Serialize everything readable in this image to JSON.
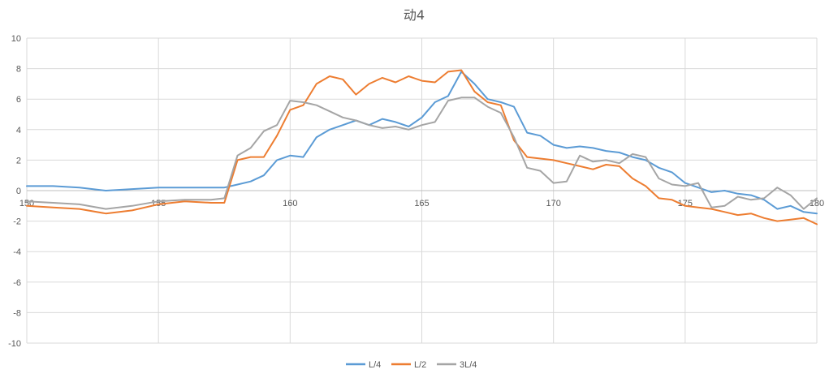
{
  "chart_data": {
    "type": "line",
    "title": "动4",
    "xlabel": "",
    "ylabel": "",
    "xlim": [
      150,
      180
    ],
    "ylim": [
      -10,
      10
    ],
    "xticks": [
      150,
      155,
      160,
      165,
      170,
      175,
      180
    ],
    "yticks": [
      -10,
      -8,
      -6,
      -4,
      -2,
      0,
      2,
      4,
      6,
      8,
      10
    ],
    "grid": true,
    "legend": "bottom",
    "x": [
      150,
      151,
      152,
      153,
      154,
      155,
      156,
      157,
      157.5,
      158,
      158.5,
      159,
      159.5,
      160,
      160.5,
      161,
      161.5,
      162,
      162.5,
      163,
      163.5,
      164,
      164.5,
      165,
      165.5,
      166,
      166.5,
      167,
      167.5,
      168,
      168.5,
      169,
      169.5,
      170,
      170.5,
      171,
      171.5,
      172,
      172.5,
      173,
      173.5,
      174,
      174.5,
      175,
      175.5,
      176,
      176.5,
      177,
      177.5,
      178,
      178.5,
      179,
      179.5,
      180
    ],
    "series": [
      {
        "name": "L/4",
        "color": "#5B9BD5",
        "values": [
          0.3,
          0.3,
          0.2,
          0.0,
          0.1,
          0.2,
          0.2,
          0.2,
          0.2,
          0.4,
          0.6,
          1.0,
          2.0,
          2.3,
          2.2,
          3.5,
          4.0,
          4.3,
          4.6,
          4.3,
          4.7,
          4.5,
          4.2,
          4.8,
          5.8,
          6.2,
          7.8,
          7.0,
          6.0,
          5.8,
          5.5,
          3.8,
          3.6,
          3.0,
          2.8,
          2.9,
          2.8,
          2.6,
          2.5,
          2.2,
          2.0,
          1.5,
          1.2,
          0.5,
          0.2,
          -0.1,
          0.0,
          -0.2,
          -0.3,
          -0.6,
          -1.2,
          -1.0,
          -1.4,
          -1.5
        ]
      },
      {
        "name": "L/2",
        "color": "#ED7D31",
        "values": [
          -1.0,
          -1.1,
          -1.2,
          -1.5,
          -1.3,
          -0.9,
          -0.7,
          -0.8,
          -0.8,
          2.0,
          2.2,
          2.2,
          3.6,
          5.3,
          5.6,
          7.0,
          7.5,
          7.3,
          6.3,
          7.0,
          7.4,
          7.1,
          7.5,
          7.2,
          7.1,
          7.8,
          7.9,
          6.5,
          5.8,
          5.6,
          3.3,
          2.2,
          2.1,
          2.0,
          1.8,
          1.6,
          1.4,
          1.7,
          1.6,
          0.8,
          0.3,
          -0.5,
          -0.6,
          -1.0,
          -1.1,
          -1.2,
          -1.4,
          -1.6,
          -1.5,
          -1.8,
          -2.0,
          -1.9,
          -1.8,
          -2.2
        ]
      },
      {
        "name": "3L/4",
        "color": "#A5A5A5",
        "values": [
          -0.7,
          -0.8,
          -0.9,
          -1.2,
          -1.0,
          -0.7,
          -0.6,
          -0.6,
          -0.5,
          2.3,
          2.8,
          3.9,
          4.3,
          5.9,
          5.8,
          5.6,
          5.2,
          4.8,
          4.6,
          4.3,
          4.1,
          4.2,
          4.0,
          4.3,
          4.5,
          5.9,
          6.1,
          6.1,
          5.5,
          5.1,
          3.5,
          1.5,
          1.3,
          0.5,
          0.6,
          2.3,
          1.9,
          2.0,
          1.8,
          2.4,
          2.2,
          0.8,
          0.4,
          0.3,
          0.5,
          -1.1,
          -1.0,
          -0.4,
          -0.6,
          -0.5,
          0.2,
          -0.3,
          -1.2,
          -0.5
        ]
      }
    ]
  }
}
